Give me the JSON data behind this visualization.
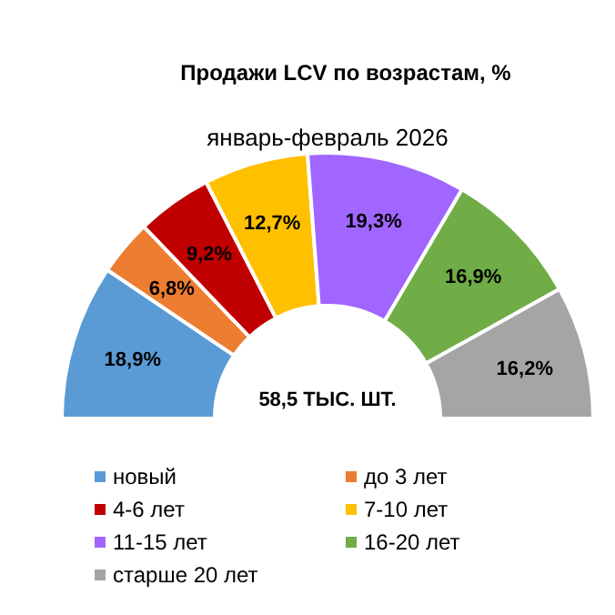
{
  "chart_data": {
    "type": "donut",
    "title": "Продажи LCV по возрастам, %",
    "subtitle": "январь-февраль 2026",
    "categories": [
      "новый",
      "до 3 лет",
      "4-6 лет",
      "7-10 лет",
      "11-15 лет",
      "16-20 лет",
      "старше 20 лет"
    ],
    "values": [
      18.9,
      6.8,
      9.2,
      12.7,
      19.3,
      16.9,
      16.2
    ],
    "colors": [
      "#5b9bd5",
      "#ed7d31",
      "#c00000",
      "#ffc000",
      "#a066ff",
      "#70ad47",
      "#a5a5a5"
    ],
    "value_labels": [
      "18,9%",
      "6,8%",
      "9,2%",
      "12,7%",
      "19,3%",
      "16,9%",
      "16,2%"
    ],
    "annotations": [
      "58,5 ТЫС. ШТ."
    ],
    "legend": "bottom"
  }
}
